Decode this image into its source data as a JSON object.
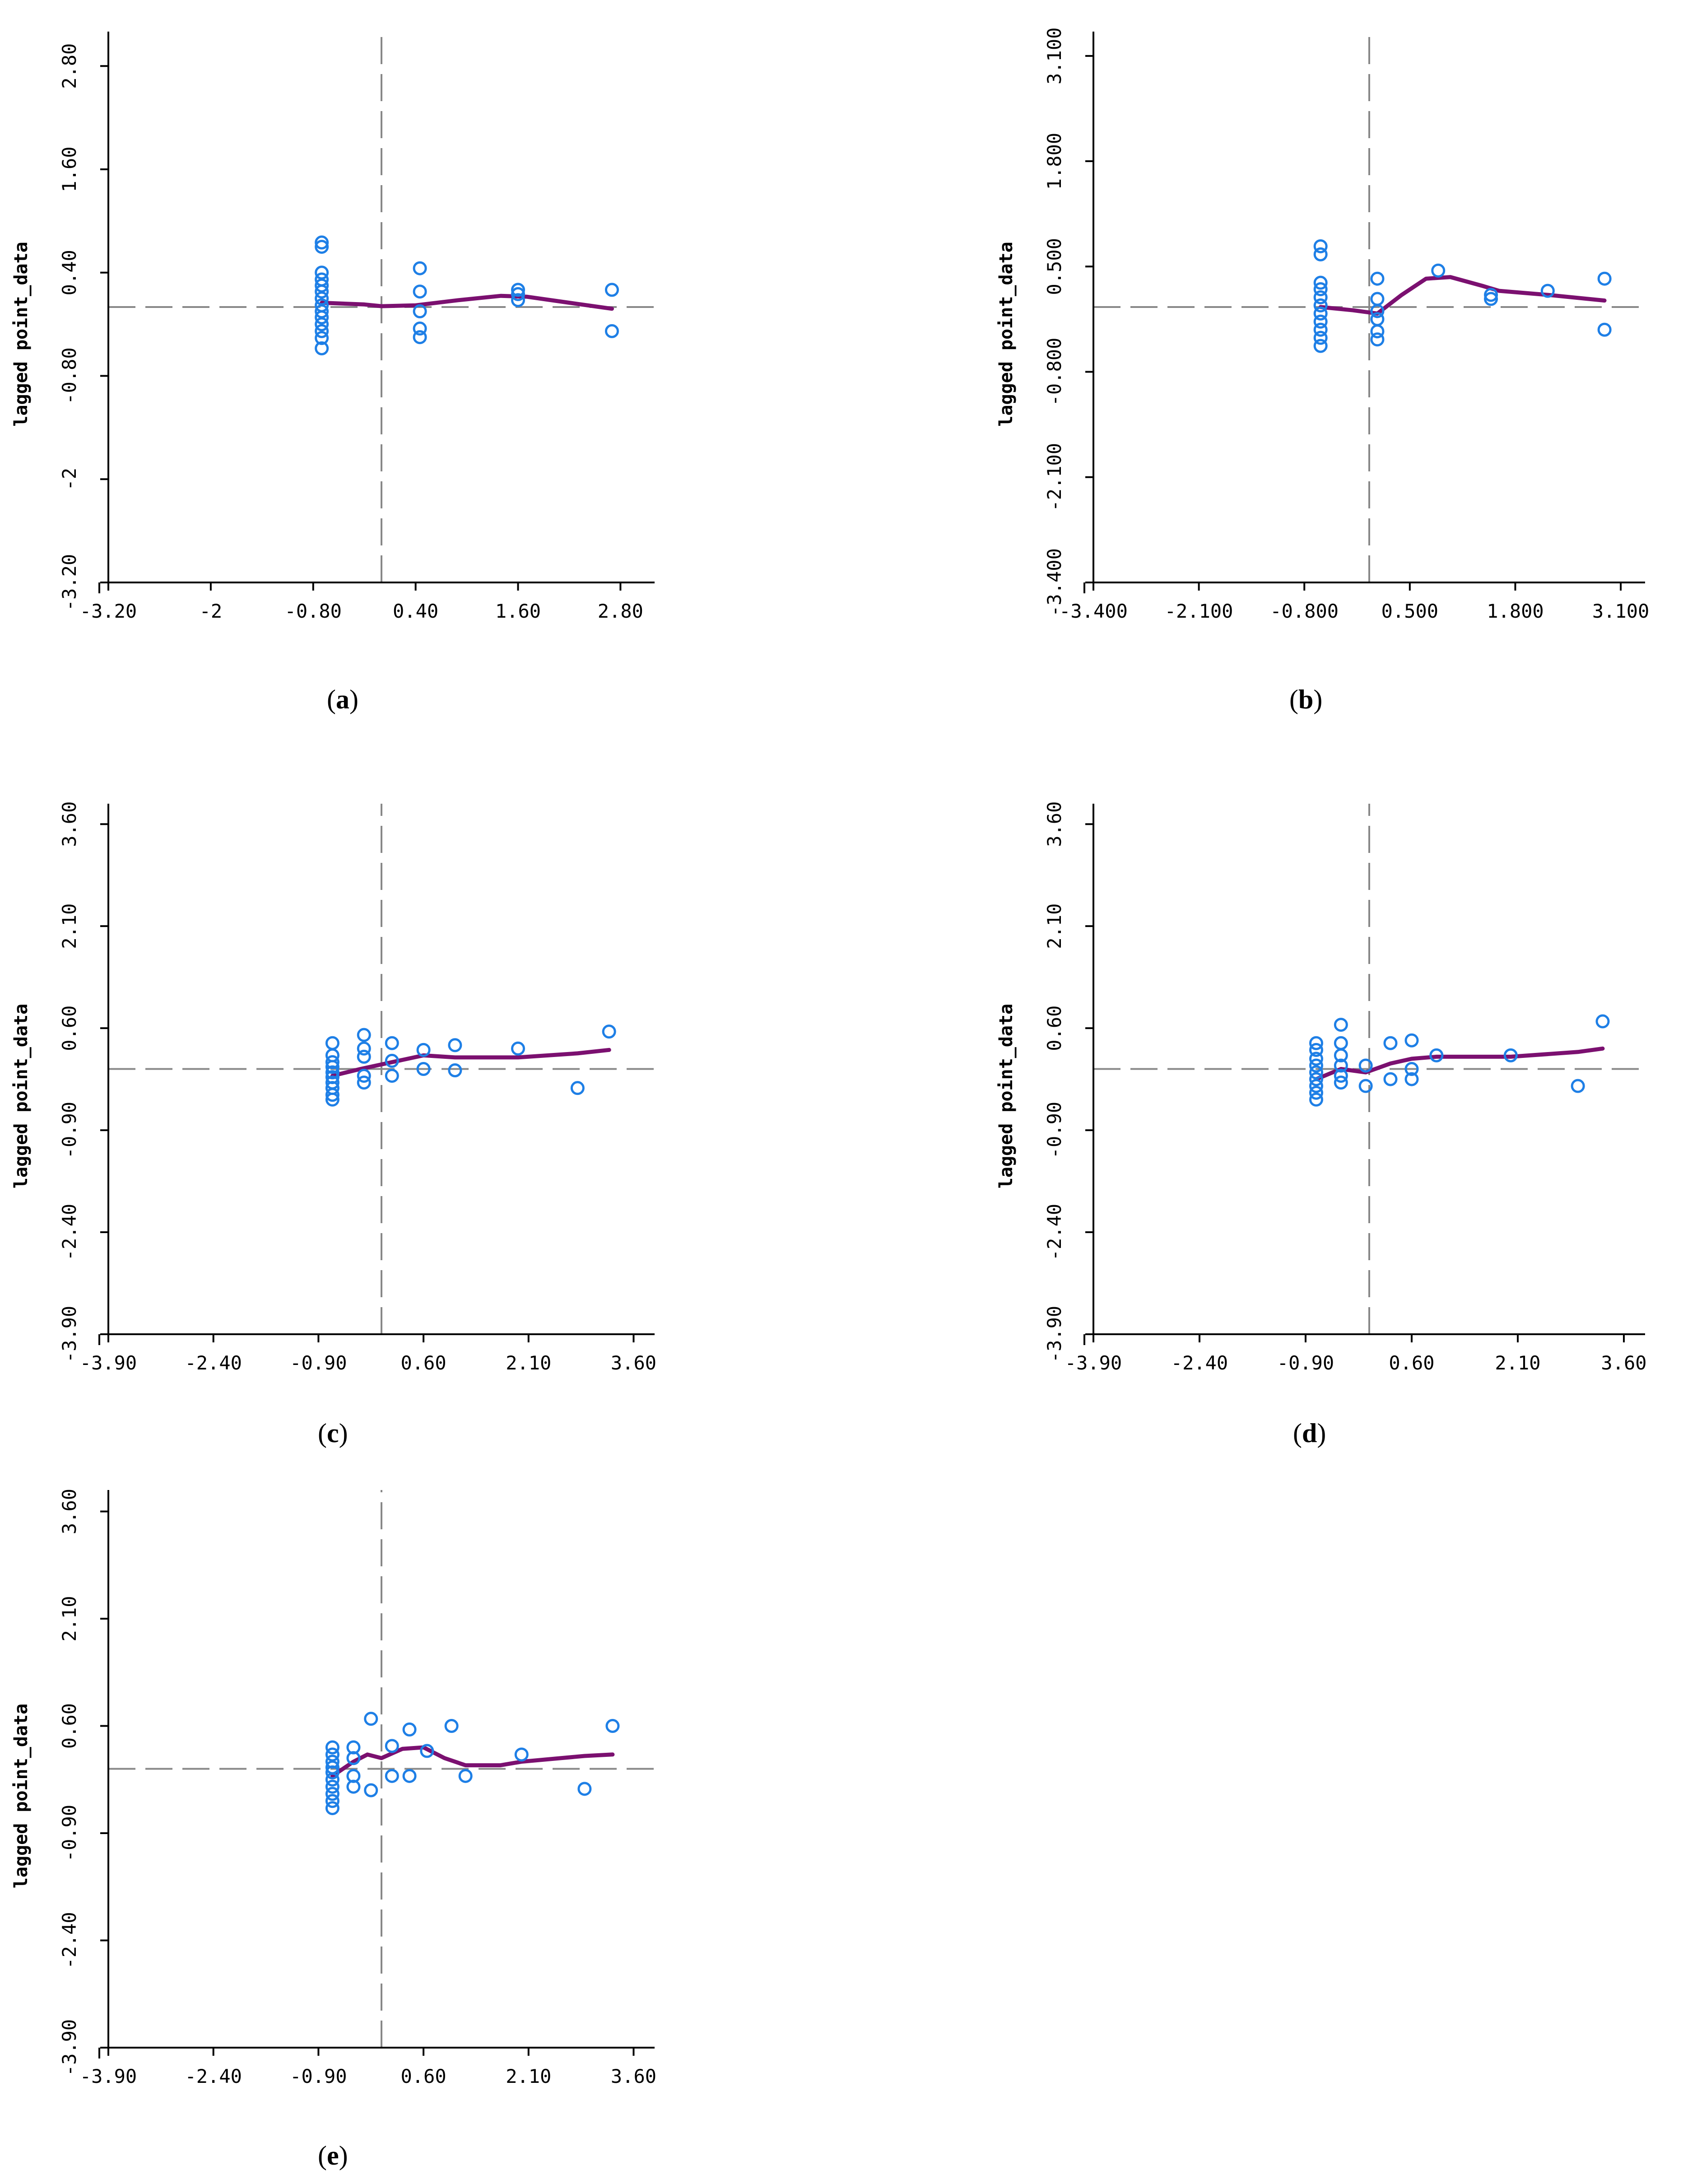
{
  "colors": {
    "points": "#1e7fe6",
    "smooth": "#7b1070",
    "axis": "#000000",
    "guide": "#888888"
  },
  "chart_data": [
    {
      "id": "a",
      "type": "scatter",
      "caption_letter": "a",
      "ylabel": "lagged point_data",
      "xlim": [
        -3.2,
        3.2
      ],
      "ylim": [
        -3.2,
        3.2
      ],
      "xticks": [
        "-3.20",
        "-2",
        "-0.80",
        "0.40",
        "1.60",
        "2.80"
      ],
      "xtick_values": [
        -3.2,
        -2,
        -0.8,
        0.4,
        1.6,
        2.8
      ],
      "yticks": [
        "-3.20",
        "-2",
        "-0.80",
        "0.40",
        "1.60",
        "2.80"
      ],
      "ytick_values": [
        -3.2,
        -2,
        -0.8,
        0.4,
        1.6,
        2.8
      ],
      "guide_x": 0,
      "guide_y": 0,
      "points": [
        [
          -0.7,
          0.75
        ],
        [
          -0.7,
          0.7
        ],
        [
          -0.7,
          0.4
        ],
        [
          -0.7,
          0.32
        ],
        [
          -0.7,
          0.25
        ],
        [
          -0.7,
          0.18
        ],
        [
          -0.7,
          0.1
        ],
        [
          -0.7,
          0.02
        ],
        [
          -0.7,
          -0.05
        ],
        [
          -0.7,
          -0.12
        ],
        [
          -0.7,
          -0.2
        ],
        [
          -0.7,
          -0.28
        ],
        [
          -0.7,
          -0.36
        ],
        [
          -0.7,
          -0.48
        ],
        [
          0.45,
          0.45
        ],
        [
          0.45,
          0.18
        ],
        [
          0.45,
          -0.05
        ],
        [
          0.45,
          -0.25
        ],
        [
          0.45,
          -0.35
        ],
        [
          1.6,
          0.2
        ],
        [
          1.6,
          0.15
        ],
        [
          1.6,
          0.08
        ],
        [
          2.7,
          0.2
        ],
        [
          2.7,
          -0.28
        ]
      ],
      "smooth": [
        [
          -0.7,
          0.05
        ],
        [
          -0.2,
          0.03
        ],
        [
          0,
          0.01
        ],
        [
          0.4,
          0.02
        ],
        [
          0.9,
          0.08
        ],
        [
          1.4,
          0.13
        ],
        [
          1.7,
          0.12
        ],
        [
          2.2,
          0.05
        ],
        [
          2.7,
          -0.02
        ]
      ]
    },
    {
      "id": "b",
      "type": "scatter",
      "caption_letter": "b",
      "ylabel": "lagged point_data",
      "xlim": [
        -3.4,
        3.4
      ],
      "ylim": [
        -3.4,
        3.4
      ],
      "xticks": [
        "-3.400",
        "-2.100",
        "-0.800",
        "0.500",
        "1.800",
        "3.100"
      ],
      "xtick_values": [
        -3.4,
        -2.1,
        -0.8,
        0.5,
        1.8,
        3.1
      ],
      "yticks": [
        "-3.400",
        "-2.100",
        "-0.800",
        "0.500",
        "1.800",
        "3.100"
      ],
      "ytick_values": [
        -3.4,
        -2.1,
        -0.8,
        0.5,
        1.8,
        3.1
      ],
      "guide_x": 0,
      "guide_y": 0,
      "points": [
        [
          -0.6,
          0.75
        ],
        [
          -0.6,
          0.65
        ],
        [
          -0.6,
          0.3
        ],
        [
          -0.6,
          0.22
        ],
        [
          -0.6,
          0.12
        ],
        [
          -0.6,
          0.02
        ],
        [
          -0.6,
          -0.08
        ],
        [
          -0.6,
          -0.18
        ],
        [
          -0.6,
          -0.28
        ],
        [
          -0.6,
          -0.38
        ],
        [
          -0.6,
          -0.48
        ],
        [
          0.1,
          0.35
        ],
        [
          0.1,
          0.1
        ],
        [
          0.1,
          -0.05
        ],
        [
          0.1,
          -0.15
        ],
        [
          0.1,
          -0.3
        ],
        [
          0.1,
          -0.4
        ],
        [
          0.85,
          0.45
        ],
        [
          1.5,
          0.15
        ],
        [
          1.5,
          0.1
        ],
        [
          2.2,
          0.2
        ],
        [
          2.9,
          0.35
        ],
        [
          2.9,
          -0.28
        ]
      ],
      "smooth": [
        [
          -0.6,
          0.0
        ],
        [
          -0.2,
          -0.04
        ],
        [
          0.1,
          -0.08
        ],
        [
          0.4,
          0.15
        ],
        [
          0.7,
          0.35
        ],
        [
          1.0,
          0.37
        ],
        [
          1.4,
          0.26
        ],
        [
          1.6,
          0.2
        ],
        [
          2.2,
          0.15
        ],
        [
          2.9,
          0.08
        ]
      ]
    },
    {
      "id": "c",
      "type": "scatter",
      "caption_letter": "c",
      "ylabel": "lagged point_data",
      "xlim": [
        -3.9,
        3.9
      ],
      "ylim": [
        -3.9,
        3.9
      ],
      "xticks": [
        "-3.90",
        "-2.40",
        "-0.90",
        "0.60",
        "2.10",
        "3.60"
      ],
      "xtick_values": [
        -3.9,
        -2.4,
        -0.9,
        0.6,
        2.1,
        3.6
      ],
      "yticks": [
        "-3.90",
        "-2.40",
        "-0.90",
        "0.60",
        "2.10",
        "3.60"
      ],
      "ytick_values": [
        -3.9,
        -2.4,
        -0.9,
        0.6,
        2.1,
        3.6
      ],
      "guide_x": 0,
      "guide_y": 0,
      "points": [
        [
          -0.7,
          0.38
        ],
        [
          -0.7,
          0.2
        ],
        [
          -0.7,
          0.1
        ],
        [
          -0.7,
          0.03
        ],
        [
          -0.7,
          -0.05
        ],
        [
          -0.7,
          -0.12
        ],
        [
          -0.7,
          -0.2
        ],
        [
          -0.7,
          -0.28
        ],
        [
          -0.7,
          -0.38
        ],
        [
          -0.7,
          -0.45
        ],
        [
          -0.25,
          0.5
        ],
        [
          -0.25,
          0.3
        ],
        [
          -0.25,
          0.18
        ],
        [
          -0.25,
          -0.1
        ],
        [
          -0.25,
          -0.2
        ],
        [
          0.15,
          0.38
        ],
        [
          0.15,
          0.12
        ],
        [
          0.15,
          -0.1
        ],
        [
          0.6,
          0.28
        ],
        [
          0.6,
          0.0
        ],
        [
          1.05,
          0.35
        ],
        [
          1.05,
          -0.02
        ],
        [
          1.95,
          0.3
        ],
        [
          2.8,
          -0.28
        ],
        [
          3.25,
          0.55
        ]
      ],
      "smooth": [
        [
          -0.7,
          -0.1
        ],
        [
          -0.3,
          0.0
        ],
        [
          0.15,
          0.1
        ],
        [
          0.6,
          0.2
        ],
        [
          1.05,
          0.17
        ],
        [
          1.95,
          0.17
        ],
        [
          2.8,
          0.23
        ],
        [
          3.25,
          0.28
        ]
      ]
    },
    {
      "id": "d",
      "type": "scatter",
      "caption_letter": "d",
      "ylabel": "lagged point_data",
      "xlim": [
        -3.9,
        3.9
      ],
      "ylim": [
        -3.9,
        3.9
      ],
      "xticks": [
        "-3.90",
        "-2.40",
        "-0.90",
        "0.60",
        "2.10",
        "3.60"
      ],
      "xtick_values": [
        -3.9,
        -2.4,
        -0.9,
        0.6,
        2.1,
        3.6
      ],
      "yticks": [
        "-3.90",
        "-2.40",
        "-0.90",
        "0.60",
        "2.10",
        "3.60"
      ],
      "ytick_values": [
        -3.9,
        -2.4,
        -0.9,
        0.6,
        2.1,
        3.6
      ],
      "guide_x": 0,
      "guide_y": 0,
      "points": [
        [
          -0.75,
          0.38
        ],
        [
          -0.75,
          0.28
        ],
        [
          -0.75,
          0.15
        ],
        [
          -0.75,
          0.05
        ],
        [
          -0.75,
          -0.05
        ],
        [
          -0.75,
          -0.15
        ],
        [
          -0.75,
          -0.25
        ],
        [
          -0.75,
          -0.35
        ],
        [
          -0.75,
          -0.45
        ],
        [
          -0.4,
          0.65
        ],
        [
          -0.4,
          0.38
        ],
        [
          -0.4,
          0.2
        ],
        [
          -0.4,
          0.05
        ],
        [
          -0.4,
          -0.1
        ],
        [
          -0.4,
          -0.2
        ],
        [
          -0.05,
          0.05
        ],
        [
          -0.05,
          -0.25
        ],
        [
          0.3,
          0.38
        ],
        [
          0.3,
          -0.15
        ],
        [
          0.6,
          0.42
        ],
        [
          0.6,
          0.0
        ],
        [
          0.6,
          -0.15
        ],
        [
          0.95,
          0.2
        ],
        [
          2.0,
          0.2
        ],
        [
          2.95,
          -0.25
        ],
        [
          3.3,
          0.7
        ]
      ],
      "smooth": [
        [
          -0.75,
          -0.15
        ],
        [
          -0.4,
          0.0
        ],
        [
          -0.05,
          -0.05
        ],
        [
          0.3,
          0.08
        ],
        [
          0.6,
          0.15
        ],
        [
          0.95,
          0.18
        ],
        [
          2.0,
          0.18
        ],
        [
          2.95,
          0.25
        ],
        [
          3.3,
          0.3
        ]
      ]
    },
    {
      "id": "e",
      "type": "scatter",
      "caption_letter": "e",
      "ylabel": "lagged point_data",
      "xlim": [
        -3.9,
        3.9
      ],
      "ylim": [
        -3.9,
        3.9
      ],
      "xticks": [
        "-3.90",
        "-2.40",
        "-0.90",
        "0.60",
        "2.10",
        "3.60"
      ],
      "xtick_values": [
        -3.9,
        -2.4,
        -0.9,
        0.6,
        2.1,
        3.6
      ],
      "yticks": [
        "-3.90",
        "-2.40",
        "-0.90",
        "0.60",
        "2.10",
        "3.60"
      ],
      "ytick_values": [
        -3.9,
        -2.4,
        -0.9,
        0.6,
        2.1,
        3.6
      ],
      "guide_x": 0,
      "guide_y": 0,
      "points": [
        [
          -0.7,
          0.3
        ],
        [
          -0.7,
          0.2
        ],
        [
          -0.7,
          0.1
        ],
        [
          -0.7,
          0.02
        ],
        [
          -0.7,
          -0.05
        ],
        [
          -0.7,
          -0.15
        ],
        [
          -0.7,
          -0.25
        ],
        [
          -0.7,
          -0.35
        ],
        [
          -0.7,
          -0.45
        ],
        [
          -0.7,
          -0.55
        ],
        [
          -0.4,
          0.3
        ],
        [
          -0.4,
          0.15
        ],
        [
          -0.4,
          -0.1
        ],
        [
          -0.4,
          -0.25
        ],
        [
          -0.15,
          0.7
        ],
        [
          -0.15,
          -0.3
        ],
        [
          0.15,
          0.32
        ],
        [
          0.15,
          -0.1
        ],
        [
          0.4,
          0.55
        ],
        [
          0.4,
          -0.1
        ],
        [
          0.65,
          0.25
        ],
        [
          1.0,
          0.6
        ],
        [
          1.2,
          -0.1
        ],
        [
          2.0,
          0.2
        ],
        [
          2.9,
          -0.28
        ],
        [
          3.3,
          0.6
        ]
      ],
      "smooth": [
        [
          -0.7,
          -0.1
        ],
        [
          -0.4,
          0.1
        ],
        [
          -0.2,
          0.2
        ],
        [
          0.0,
          0.15
        ],
        [
          0.3,
          0.28
        ],
        [
          0.6,
          0.3
        ],
        [
          0.9,
          0.15
        ],
        [
          1.2,
          0.05
        ],
        [
          1.7,
          0.05
        ],
        [
          2.0,
          0.1
        ],
        [
          2.9,
          0.18
        ],
        [
          3.3,
          0.2
        ]
      ]
    }
  ]
}
